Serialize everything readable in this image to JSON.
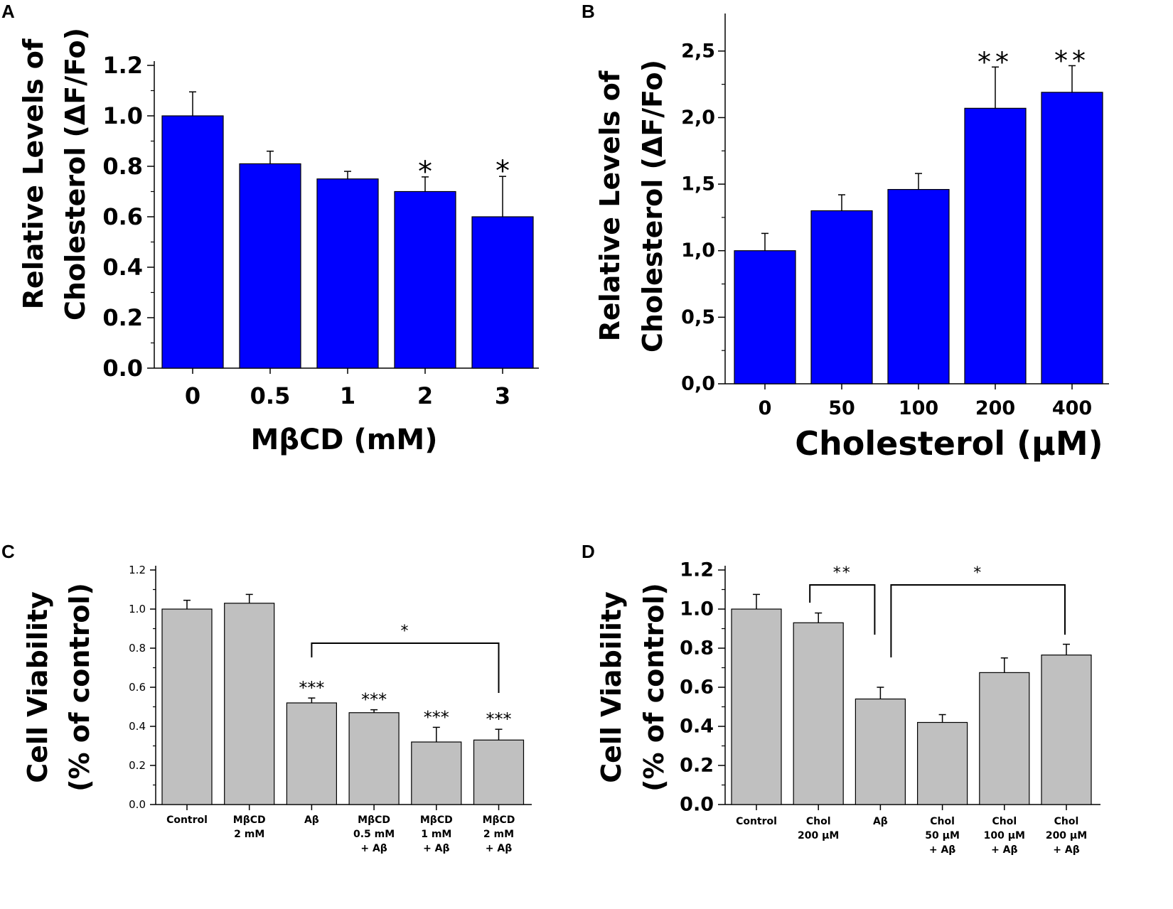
{
  "chart_data": [
    {
      "panel": "A",
      "type": "bar",
      "categories": [
        "0",
        "0.5",
        "1",
        "2",
        "3"
      ],
      "values": [
        1.0,
        0.81,
        0.75,
        0.7,
        0.6
      ],
      "errors": [
        0.095,
        0.05,
        0.03,
        0.058,
        0.16
      ],
      "significance": [
        "",
        "",
        "",
        "*",
        "*"
      ],
      "title": "",
      "xlabel": "MβCD (mM)",
      "ylabel_line1": "Relative Levels of",
      "ylabel_line2": "Cholesterol (ΔF/Fo)",
      "ylim": [
        0,
        1.2
      ],
      "yticks": [
        "0.0",
        "0.2",
        "0.4",
        "0.6",
        "0.8",
        "1.0",
        "1.2"
      ],
      "bar_color": "#0000ff"
    },
    {
      "panel": "B",
      "type": "bar",
      "categories": [
        "0",
        "50",
        "100",
        "200",
        "400"
      ],
      "values": [
        1.0,
        1.3,
        1.46,
        2.07,
        2.19
      ],
      "errors": [
        0.13,
        0.12,
        0.12,
        0.31,
        0.2
      ],
      "significance": [
        "",
        "",
        "",
        "**",
        "**"
      ],
      "title": "",
      "xlabel": "Cholesterol (µM)",
      "ylabel_line1": "Relative Levels of",
      "ylabel_line2": "Cholesterol (ΔF/Fo)",
      "ylim": [
        0,
        2.75
      ],
      "yticks": [
        "0,0",
        "0,5",
        "1,0",
        "1,5",
        "2,0",
        "2,5"
      ],
      "bar_color": "#0000ff"
    },
    {
      "panel": "C",
      "type": "bar",
      "categories": [
        [
          "Control"
        ],
        [
          "MβCD",
          "2 mM"
        ],
        [
          "Aβ"
        ],
        [
          "MβCD",
          "0.5 mM",
          "+ Aβ"
        ],
        [
          "MβCD",
          "1 mM",
          "+ Aβ"
        ],
        [
          "MβCD",
          "2 mM",
          "+ Aβ"
        ]
      ],
      "values": [
        1.0,
        1.03,
        0.52,
        0.47,
        0.32,
        0.33
      ],
      "errors": [
        0.045,
        0.045,
        0.025,
        0.015,
        0.075,
        0.055
      ],
      "significance": [
        "",
        "",
        "***",
        "***",
        "***",
        "***"
      ],
      "bracket": {
        "from": 2,
        "to": 5,
        "label": "*"
      },
      "title": "",
      "xlabel": "",
      "ylabel_line1": "Cell Viability",
      "ylabel_line2": "(% of control)",
      "ylim": [
        0,
        1.2
      ],
      "yticks": [
        "0.0",
        "0.2",
        "0.4",
        "0.6",
        "0.8",
        "1.0",
        "1.2"
      ],
      "bar_color": "#c0c0c0"
    },
    {
      "panel": "D",
      "type": "bar",
      "categories": [
        [
          "Control"
        ],
        [
          "Chol",
          "200 µM"
        ],
        [
          "Aβ"
        ],
        [
          "Chol",
          "50 µM",
          "+ Aβ"
        ],
        [
          "Chol",
          "100 µM",
          "+ Aβ"
        ],
        [
          "Chol",
          "200 µM",
          "+ Aβ"
        ]
      ],
      "values": [
        1.0,
        0.93,
        0.54,
        0.42,
        0.675,
        0.765
      ],
      "errors": [
        0.075,
        0.05,
        0.06,
        0.04,
        0.075,
        0.055
      ],
      "significance": [
        "",
        "",
        "",
        "",
        "",
        ""
      ],
      "brackets": [
        {
          "from": 1,
          "to": 2,
          "label": "**"
        },
        {
          "from": 2,
          "to": 5,
          "label": "*"
        }
      ],
      "title": "",
      "xlabel": "",
      "ylabel_line1": "Cell Viability",
      "ylabel_line2": "(% of control)",
      "ylim": [
        0,
        1.2
      ],
      "yticks": [
        "0.0",
        "0.2",
        "0.4",
        "0.6",
        "0.8",
        "1.0",
        "1.2"
      ],
      "bar_color": "#c0c0c0"
    }
  ]
}
